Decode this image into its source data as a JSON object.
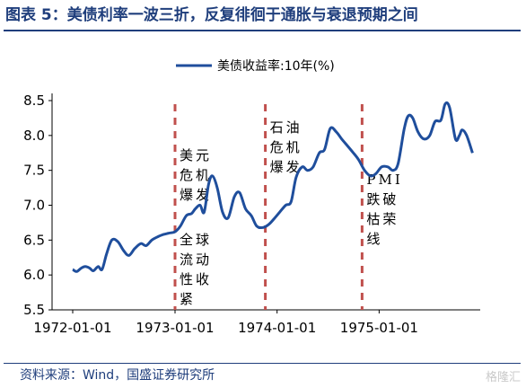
{
  "header": {
    "title": "图表 5：美债利率一波三折，反复徘徊于通胀与衰退预期之间"
  },
  "footer": {
    "source": "资料来源：Wind，国盛证券研究所",
    "watermark": "格隆汇"
  },
  "colors": {
    "line": "#1f4e9c",
    "annotation_line": "#c0504d",
    "title": "#1f3e7c",
    "axis": "#000000"
  },
  "chart_data": {
    "type": "line",
    "title": "",
    "xlabel": "",
    "ylabel": "",
    "x_ticks": [
      "1972-01-01",
      "1973-01-01",
      "1974-01-01",
      "1975-01-01"
    ],
    "ylim": [
      5.5,
      8.5
    ],
    "y_ticks": [
      "5.5",
      "6.0",
      "6.5",
      "7.0",
      "7.5",
      "8.0",
      "8.5"
    ],
    "grid": false,
    "legend_position": "top-center",
    "series": [
      {
        "name": "美债收益率:10年(%)",
        "points": [
          [
            "1972-01-01",
            6.08
          ],
          [
            "1972-01-15",
            6.05
          ],
          [
            "1972-02-01",
            6.1
          ],
          [
            "1972-02-15",
            6.12
          ],
          [
            "1972-03-01",
            6.1
          ],
          [
            "1972-03-15",
            6.06
          ],
          [
            "1972-04-01",
            6.12
          ],
          [
            "1972-04-15",
            6.08
          ],
          [
            "1972-05-01",
            6.3
          ],
          [
            "1972-05-20",
            6.5
          ],
          [
            "1972-06-10",
            6.48
          ],
          [
            "1972-07-01",
            6.35
          ],
          [
            "1972-07-20",
            6.28
          ],
          [
            "1972-08-10",
            6.38
          ],
          [
            "1972-09-01",
            6.45
          ],
          [
            "1972-09-20",
            6.42
          ],
          [
            "1972-10-10",
            6.5
          ],
          [
            "1972-11-01",
            6.55
          ],
          [
            "1972-11-20",
            6.58
          ],
          [
            "1972-12-10",
            6.6
          ],
          [
            "1973-01-01",
            6.62
          ],
          [
            "1973-01-20",
            6.7
          ],
          [
            "1973-02-10",
            6.85
          ],
          [
            "1973-03-01",
            6.88
          ],
          [
            "1973-03-15",
            6.95
          ],
          [
            "1973-04-01",
            7.0
          ],
          [
            "1973-04-15",
            6.9
          ],
          [
            "1973-05-01",
            7.3
          ],
          [
            "1973-05-15",
            7.42
          ],
          [
            "1973-06-01",
            7.25
          ],
          [
            "1973-06-20",
            6.9
          ],
          [
            "1973-07-10",
            6.82
          ],
          [
            "1973-08-01",
            7.12
          ],
          [
            "1973-08-20",
            7.18
          ],
          [
            "1973-09-10",
            6.95
          ],
          [
            "1973-10-01",
            6.85
          ],
          [
            "1973-10-20",
            6.7
          ],
          [
            "1973-11-10",
            6.68
          ],
          [
            "1973-12-01",
            6.72
          ],
          [
            "1973-12-20",
            6.8
          ],
          [
            "1974-01-10",
            6.9
          ],
          [
            "1974-02-01",
            7.0
          ],
          [
            "1974-02-20",
            7.05
          ],
          [
            "1974-03-10",
            7.4
          ],
          [
            "1974-04-01",
            7.55
          ],
          [
            "1974-04-20",
            7.5
          ],
          [
            "1974-05-10",
            7.55
          ],
          [
            "1974-06-01",
            7.75
          ],
          [
            "1974-06-20",
            7.8
          ],
          [
            "1974-07-10",
            8.1
          ],
          [
            "1974-08-01",
            8.05
          ],
          [
            "1974-08-20",
            7.95
          ],
          [
            "1974-09-10",
            7.85
          ],
          [
            "1974-10-01",
            7.75
          ],
          [
            "1974-10-20",
            7.65
          ],
          [
            "1974-11-10",
            7.5
          ],
          [
            "1974-12-01",
            7.42
          ],
          [
            "1974-12-20",
            7.45
          ],
          [
            "1975-01-10",
            7.55
          ],
          [
            "1975-02-01",
            7.55
          ],
          [
            "1975-02-20",
            7.5
          ],
          [
            "1975-03-10",
            7.6
          ],
          [
            "1975-04-01",
            8.1
          ],
          [
            "1975-04-15",
            8.28
          ],
          [
            "1975-05-01",
            8.25
          ],
          [
            "1975-05-20",
            8.05
          ],
          [
            "1975-06-10",
            7.95
          ],
          [
            "1975-07-01",
            8.0
          ],
          [
            "1975-07-20",
            8.2
          ],
          [
            "1975-08-10",
            8.22
          ],
          [
            "1975-08-25",
            8.45
          ],
          [
            "1975-09-10",
            8.4
          ],
          [
            "1975-10-01",
            7.95
          ],
          [
            "1975-10-15",
            8.0
          ],
          [
            "1975-10-25",
            8.08
          ],
          [
            "1975-11-10",
            8.0
          ],
          [
            "1975-12-01",
            7.75
          ]
        ]
      }
    ],
    "annotation_lines": [
      {
        "x": "1973-01-01",
        "label_top": [
          "美元",
          "危机",
          "爆发"
        ],
        "label_bottom": [
          "全球",
          "流动",
          "性收",
          "紧"
        ]
      },
      {
        "x": "1973-11-20",
        "label_top": [
          "石油",
          "危机",
          "爆发"
        ],
        "label_bottom": []
      },
      {
        "x": "1974-11-01",
        "label_top": [
          "PMI",
          "跌破",
          "枯荣",
          "线"
        ],
        "label_bottom": []
      }
    ]
  }
}
